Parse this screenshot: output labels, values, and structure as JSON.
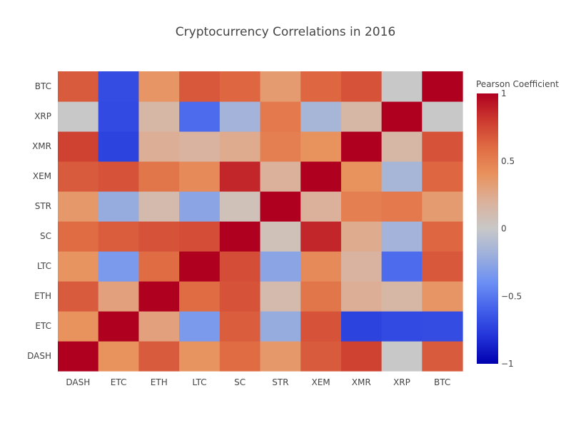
{
  "chart_data": {
    "type": "heatmap",
    "title": "Cryptocurrency Correlations in 2016",
    "x_categories": [
      "DASH",
      "ETC",
      "ETH",
      "LTC",
      "SC",
      "STR",
      "XEM",
      "XMR",
      "XRP",
      "BTC"
    ],
    "y_categories": [
      "DASH",
      "ETC",
      "ETH",
      "LTC",
      "SC",
      "STR",
      "XEM",
      "XMR",
      "XRP",
      "BTC"
    ],
    "z": [
      [
        1.0,
        0.4,
        0.67,
        0.39,
        0.6,
        0.36,
        0.67,
        0.77,
        0.0,
        0.67
      ],
      [
        0.4,
        1.0,
        0.3,
        -0.33,
        0.66,
        -0.22,
        0.7,
        -0.73,
        -0.7,
        -0.69
      ],
      [
        0.67,
        0.3,
        1.0,
        0.6,
        0.7,
        0.12,
        0.55,
        0.22,
        0.15,
        0.38
      ],
      [
        0.39,
        -0.33,
        0.6,
        1.0,
        0.72,
        -0.27,
        0.44,
        0.18,
        -0.55,
        0.68
      ],
      [
        0.6,
        0.66,
        0.7,
        0.72,
        1.0,
        0.07,
        0.87,
        0.24,
        -0.17,
        0.62
      ],
      [
        0.36,
        -0.22,
        0.12,
        -0.27,
        0.07,
        1.0,
        0.2,
        0.5,
        0.53,
        0.34
      ],
      [
        0.67,
        0.7,
        0.55,
        0.44,
        0.87,
        0.2,
        1.0,
        0.4,
        -0.15,
        0.62
      ],
      [
        0.77,
        -0.73,
        0.22,
        0.18,
        0.24,
        0.5,
        0.4,
        1.0,
        0.15,
        0.7
      ],
      [
        0.0,
        -0.7,
        0.15,
        -0.55,
        -0.17,
        0.53,
        -0.15,
        0.15,
        1.0,
        0.0
      ],
      [
        0.67,
        -0.69,
        0.38,
        0.68,
        0.62,
        0.34,
        0.62,
        0.7,
        0.0,
        1.0
      ]
    ],
    "zmin": -1,
    "zmax": 1,
    "colorscale": [
      [
        0.0,
        "#0000ae"
      ],
      [
        0.1,
        "#2233d8"
      ],
      [
        0.2,
        "#4260ea"
      ],
      [
        0.3,
        "#6b8ff4"
      ],
      [
        0.4,
        "#9cafdc"
      ],
      [
        0.5,
        "#c8c8c8"
      ],
      [
        0.6,
        "#dbb19b"
      ],
      [
        0.7,
        "#e8925e"
      ],
      [
        0.8,
        "#e06c44"
      ],
      [
        0.9,
        "#cc3a2f"
      ],
      [
        1.0,
        "#b00020"
      ]
    ],
    "colorbar": {
      "title": "Pearson Coefficient",
      "ticks": [
        1,
        0.5,
        0,
        -0.5,
        -1
      ],
      "tick_labels": [
        "1",
        "0.5",
        "0",
        "−0.5",
        "−1"
      ]
    }
  }
}
